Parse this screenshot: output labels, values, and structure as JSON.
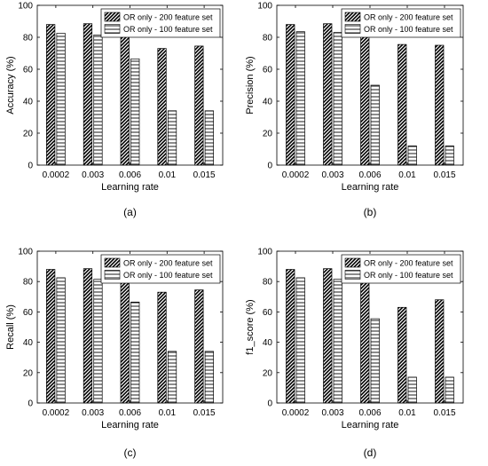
{
  "chart_data": [
    {
      "type": "bar",
      "caption": "(a)",
      "categories": [
        "0.0002",
        "0.003",
        "0.006",
        "0.01",
        "0.015"
      ],
      "xlabel": "Learning rate",
      "ylabel": "Accuracy (%)",
      "ylim": [
        0,
        100
      ],
      "yticks": [
        "0",
        "20",
        "40",
        "60",
        "80",
        "100"
      ],
      "grid": false,
      "legend_position": "top-right",
      "series": [
        {
          "name": "OR only - 200 feature set",
          "pattern": "diagonal-hatch",
          "values": [
            88,
            88.5,
            84,
            73,
            74.5
          ]
        },
        {
          "name": "OR only - 100 feature set",
          "pattern": "horizontal-lines",
          "values": [
            82.5,
            81.5,
            66.5,
            34,
            34
          ]
        }
      ]
    },
    {
      "type": "bar",
      "caption": "(b)",
      "categories": [
        "0.0002",
        "0.003",
        "0.006",
        "0.01",
        "0.015"
      ],
      "xlabel": "Learning rate",
      "ylabel": "Precision (%)",
      "ylim": [
        0,
        100
      ],
      "yticks": [
        "0",
        "20",
        "40",
        "60",
        "80",
        "100"
      ],
      "grid": false,
      "legend_position": "top-right",
      "series": [
        {
          "name": "OR only - 200 feature set",
          "pattern": "diagonal-hatch",
          "values": [
            88,
            88.5,
            84,
            75.5,
            75
          ]
        },
        {
          "name": "OR only - 100 feature set",
          "pattern": "horizontal-lines",
          "values": [
            83.5,
            83,
            50,
            12,
            12
          ]
        }
      ]
    },
    {
      "type": "bar",
      "caption": "(c)",
      "categories": [
        "0.0002",
        "0.003",
        "0.006",
        "0.01",
        "0.015"
      ],
      "xlabel": "Learning rate",
      "ylabel": "Recall (%)",
      "ylim": [
        0,
        100
      ],
      "yticks": [
        "0",
        "20",
        "40",
        "60",
        "80",
        "100"
      ],
      "grid": false,
      "legend_position": "top-right",
      "series": [
        {
          "name": "OR only - 200 feature set",
          "pattern": "diagonal-hatch",
          "values": [
            88,
            88.5,
            84,
            73,
            74.5
          ]
        },
        {
          "name": "OR only - 100 feature set",
          "pattern": "horizontal-lines",
          "values": [
            82.5,
            81.5,
            66.5,
            34,
            34
          ]
        }
      ]
    },
    {
      "type": "bar",
      "caption": "(d)",
      "categories": [
        "0.0002",
        "0.003",
        "0.006",
        "0.01",
        "0.015"
      ],
      "xlabel": "Learning rate",
      "ylabel": "f1_score (%)",
      "ylim": [
        0,
        100
      ],
      "yticks": [
        "0",
        "20",
        "40",
        "60",
        "80",
        "100"
      ],
      "grid": false,
      "legend_position": "top-right",
      "series": [
        {
          "name": "OR only - 200 feature set",
          "pattern": "diagonal-hatch",
          "values": [
            88,
            88.5,
            84,
            63,
            68
          ]
        },
        {
          "name": "OR only - 100 feature set",
          "pattern": "horizontal-lines",
          "values": [
            82.5,
            81.5,
            55.5,
            17,
            17
          ]
        }
      ]
    }
  ]
}
